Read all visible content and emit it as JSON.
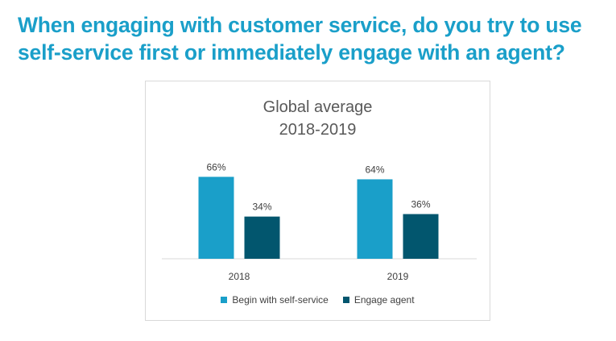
{
  "headline": {
    "line1": "When engaging with customer service, do you try to use",
    "line2": "self-service first or immediately engage with an agent?"
  },
  "chart_data": {
    "type": "bar",
    "title_line1": "Global average",
    "title_line2": "2018-2019",
    "categories": [
      "2018",
      "2019"
    ],
    "series": [
      {
        "name": "Begin with self-service",
        "values": [
          66,
          64
        ],
        "labels": [
          "66%",
          "64%"
        ],
        "color": "#1a9fc9"
      },
      {
        "name": "Engage agent",
        "values": [
          34,
          36
        ],
        "labels": [
          "34%",
          "36%"
        ],
        "color": "#02566e"
      }
    ],
    "ylim": [
      0,
      100
    ],
    "grid": false,
    "legend": "bottom",
    "xlabel": "",
    "ylabel": ""
  }
}
